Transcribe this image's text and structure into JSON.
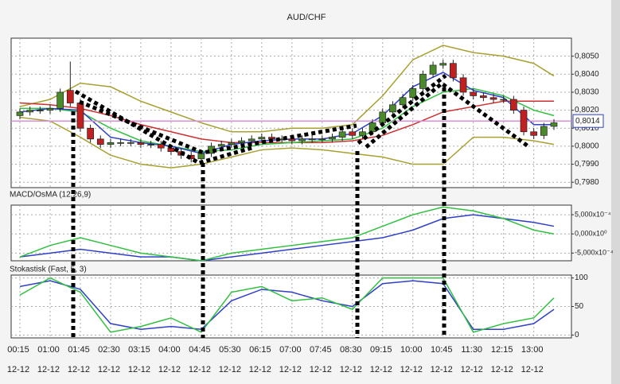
{
  "chart_data": [
    {
      "type": "candlestick",
      "title": "AUD/CHF",
      "categories": [
        "00:15",
        null,
        null,
        "01:00",
        null,
        null,
        "01:45",
        null,
        null,
        "02:30",
        null,
        null,
        "03:15",
        null,
        null,
        "04:00",
        null,
        null,
        "04:45",
        null,
        null,
        "05:30",
        null,
        null,
        "06:15",
        null,
        null,
        "07:00",
        null,
        null,
        "07:45",
        null,
        null,
        "08:30",
        null,
        null,
        "09:15",
        null,
        null,
        "10:00",
        null,
        null,
        "10:45",
        null,
        null,
        "11:30",
        null,
        null,
        "12:15",
        null,
        null,
        "13:00",
        null,
        null
      ],
      "category_dates": [
        "12-12",
        null,
        null,
        "12-12",
        null,
        null,
        "12-12",
        null,
        null,
        "12-12",
        null,
        null,
        "12-12",
        null,
        null,
        "12-12",
        null,
        null,
        "12-12",
        null,
        null,
        "12-12",
        null,
        null,
        "12-12",
        null,
        null,
        "12-12",
        null,
        null,
        "12-12",
        null,
        null,
        "12-12",
        null,
        null,
        "12-12",
        null,
        null,
        "12-12",
        null,
        null,
        "12-12",
        null,
        null,
        "12-12",
        null,
        null,
        "12-12",
        null,
        null,
        "12-12",
        null,
        null
      ],
      "open": [
        0.8017,
        0.8019,
        0.802,
        0.802,
        0.8021,
        0.8031,
        0.8024,
        0.801,
        0.8004,
        0.8001,
        0.8002,
        0.8002,
        0.8002,
        0.8001,
        0.8001,
        0.7999,
        0.7997,
        0.7995,
        0.7993,
        0.7996,
        0.8,
        0.8001,
        0.8002,
        0.8003,
        0.8004,
        0.8005,
        0.8004,
        0.8004,
        0.8003,
        0.8004,
        0.8004,
        0.8004,
        0.8005,
        0.8008,
        0.8006,
        0.8008,
        0.8013,
        0.8019,
        0.8023,
        0.8027,
        0.8032,
        0.804,
        0.8045,
        0.8046,
        0.8038,
        0.803,
        0.8028,
        0.8027,
        0.8026,
        0.8026,
        0.802,
        0.8008,
        0.8006,
        0.8011
      ],
      "high": [
        0.8021,
        0.8022,
        0.8022,
        0.8023,
        0.8032,
        0.8047,
        0.8026,
        0.8012,
        0.8006,
        0.8004,
        0.8004,
        0.8004,
        0.8004,
        0.8003,
        0.8003,
        0.8001,
        0.7999,
        0.7997,
        0.7998,
        0.8002,
        0.8003,
        0.8004,
        0.8005,
        0.8006,
        0.8007,
        0.8007,
        0.8006,
        0.8006,
        0.8006,
        0.8006,
        0.8006,
        0.8007,
        0.801,
        0.801,
        0.801,
        0.8015,
        0.8021,
        0.8025,
        0.8029,
        0.8034,
        0.8042,
        0.8047,
        0.8048,
        0.8048,
        0.804,
        0.8032,
        0.803,
        0.8029,
        0.8028,
        0.8028,
        0.8022,
        0.801,
        0.8013,
        0.8015
      ],
      "low": [
        0.8015,
        0.8017,
        0.8018,
        0.8018,
        0.8019,
        0.8022,
        0.8008,
        0.8002,
        0.7999,
        0.7999,
        0.8,
        0.8,
        0.7999,
        0.7999,
        0.7997,
        0.7995,
        0.7993,
        0.7991,
        0.7991,
        0.7994,
        0.7998,
        0.7999,
        0.8,
        0.8001,
        0.8002,
        0.8002,
        0.8002,
        0.8001,
        0.8001,
        0.8002,
        0.8002,
        0.8002,
        0.8003,
        0.8004,
        0.8004,
        0.8006,
        0.8011,
        0.8017,
        0.8021,
        0.8025,
        0.803,
        0.8038,
        0.8043,
        0.8036,
        0.8028,
        0.8026,
        0.8025,
        0.8024,
        0.8024,
        0.8018,
        0.8006,
        0.8004,
        0.8004,
        0.8009
      ],
      "close": [
        0.8019,
        0.802,
        0.802,
        0.8021,
        0.803,
        0.8024,
        0.801,
        0.8004,
        0.8001,
        0.8002,
        0.8002,
        0.8002,
        0.8001,
        0.8001,
        0.7999,
        0.7997,
        0.7995,
        0.7993,
        0.7996,
        0.8,
        0.8001,
        0.8002,
        0.8003,
        0.8004,
        0.8005,
        0.8004,
        0.8004,
        0.8003,
        0.8004,
        0.8004,
        0.8004,
        0.8005,
        0.8008,
        0.8006,
        0.8008,
        0.8013,
        0.8019,
        0.8023,
        0.8027,
        0.8032,
        0.804,
        0.8045,
        0.8046,
        0.8038,
        0.803,
        0.8028,
        0.8027,
        0.8026,
        0.8026,
        0.802,
        0.8008,
        0.8006,
        0.8011,
        0.8013
      ],
      "up_color": "#4a8a2a",
      "down_color": "#c02020",
      "series": [
        {
          "color": "#a8a030",
          "x": [
            0,
            3,
            6,
            9,
            12,
            15,
            18,
            21,
            24,
            27,
            30,
            33,
            36,
            39,
            42,
            45,
            48,
            51,
            53
          ],
          "values": [
            0.8022,
            0.8026,
            0.8035,
            0.8033,
            0.8025,
            0.8019,
            0.8013,
            0.8008,
            0.8008,
            0.801,
            0.801,
            0.8012,
            0.8028,
            0.8048,
            0.8056,
            0.8052,
            0.805,
            0.8046,
            0.8039
          ]
        },
        {
          "color": "#a8a030",
          "x": [
            0,
            3,
            6,
            9,
            12,
            15,
            18,
            21,
            24,
            27,
            30,
            33,
            36,
            39,
            42,
            45,
            48,
            51,
            53
          ],
          "values": [
            0.8016,
            0.8014,
            0.8005,
            0.7995,
            0.799,
            0.7988,
            0.799,
            0.7994,
            0.7998,
            0.7999,
            0.7998,
            0.7996,
            0.7994,
            0.799,
            0.799,
            0.8005,
            0.8005,
            0.8003,
            0.8001
          ]
        },
        {
          "color": "#cc3030",
          "x": [
            0,
            3,
            6,
            9,
            12,
            15,
            18,
            21,
            24,
            27,
            30,
            33,
            36,
            39,
            42,
            45,
            48,
            51,
            53
          ],
          "values": [
            0.8024,
            0.8023,
            0.8021,
            0.8017,
            0.8012,
            0.8008,
            0.8004,
            0.8002,
            0.8002,
            0.8002,
            0.8002,
            0.8003,
            0.8006,
            0.8012,
            0.8019,
            0.8022,
            0.8025,
            0.8025,
            0.8025
          ]
        },
        {
          "color": "#30c040",
          "x": [
            0,
            3,
            6,
            9,
            12,
            15,
            18,
            21,
            24,
            27,
            30,
            33,
            36,
            39,
            42,
            45,
            48,
            51,
            53
          ],
          "values": [
            0.8021,
            0.8021,
            0.8019,
            0.801,
            0.8003,
            0.8,
            0.7997,
            0.7998,
            0.8001,
            0.8002,
            0.8003,
            0.8004,
            0.801,
            0.8022,
            0.803,
            0.8032,
            0.8028,
            0.802,
            0.8017
          ]
        },
        {
          "color": "#3040c8",
          "x": [
            0,
            3,
            6,
            9,
            12,
            15,
            18,
            21,
            24,
            27,
            30,
            33,
            36,
            39,
            42,
            45,
            48,
            51,
            53
          ],
          "values": [
            0.8019,
            0.8021,
            0.802,
            0.8005,
            0.8002,
            0.8,
            0.7996,
            0.8001,
            0.8003,
            0.8004,
            0.8004,
            0.8007,
            0.8017,
            0.8033,
            0.8041,
            0.8031,
            0.8027,
            0.8012,
            0.8012
          ]
        }
      ],
      "last_price": {
        "value": 0.8014,
        "label": "0,8014"
      },
      "last_price_color": "#d890d8",
      "ylim": [
        0.7977,
        0.806
      ],
      "yticks": [
        {
          "value": 0.798,
          "label": "0,7980"
        },
        {
          "value": 0.799,
          "label": "0,7990"
        },
        {
          "value": 0.8,
          "label": "0,8000"
        },
        {
          "value": 0.801,
          "label": "0,8010"
        },
        {
          "value": 0.802,
          "label": "0,8020"
        },
        {
          "value": 0.803,
          "label": "0,8030"
        },
        {
          "value": 0.804,
          "label": "0,8040"
        },
        {
          "value": 0.805,
          "label": "0,8050"
        }
      ],
      "grid": true
    },
    {
      "type": "line",
      "title": "MACD/OsMA (12,26,9)",
      "series": [
        {
          "color": "#3040c8",
          "x": [
            0,
            3,
            6,
            9,
            12,
            15,
            18,
            21,
            24,
            27,
            30,
            33,
            36,
            39,
            42,
            45,
            48,
            51,
            53
          ],
          "values": [
            -0.0006,
            -0.0005,
            -0.0004,
            -0.0005,
            -0.0006,
            -0.0006,
            -0.0007,
            -0.0006,
            -0.0005,
            -0.0004,
            -0.0003,
            -0.0002,
            -0.0001,
            0.0001,
            0.0004,
            0.0005,
            0.0004,
            0.0003,
            0.0002
          ]
        },
        {
          "color": "#30c040",
          "x": [
            0,
            3,
            6,
            9,
            12,
            15,
            18,
            21,
            24,
            27,
            30,
            33,
            36,
            39,
            42,
            45,
            48,
            51,
            53
          ],
          "values": [
            -0.0006,
            -0.0003,
            -0.0001,
            -0.0003,
            -0.0005,
            -0.0006,
            -0.0007,
            -0.0005,
            -0.0004,
            -0.0003,
            -0.0002,
            -0.0001,
            0.0002,
            0.0005,
            0.0007,
            0.0006,
            0.0004,
            0.0001,
            0
          ]
        }
      ],
      "ylim": [
        -0.0007,
        0.00075
      ],
      "yticks": [
        {
          "value": -0.0005,
          "label": "-5,000x10⁻⁴"
        },
        {
          "value": 0,
          "label": "0,000x10⁰"
        },
        {
          "value": 0.0005,
          "label": "5,000x10⁻⁴"
        }
      ],
      "grid": true
    },
    {
      "type": "line",
      "title": "Stokastisk (Fast, 5, 3)",
      "series": [
        {
          "color": "#3040c8",
          "x": [
            0,
            3,
            6,
            9,
            12,
            15,
            18,
            21,
            24,
            27,
            30,
            33,
            36,
            39,
            42,
            45,
            48,
            51,
            53
          ],
          "values": [
            85,
            95,
            80,
            20,
            10,
            15,
            10,
            60,
            80,
            75,
            60,
            50,
            90,
            95,
            90,
            10,
            10,
            20,
            45
          ]
        },
        {
          "color": "#30c040",
          "x": [
            0,
            3,
            6,
            9,
            12,
            15,
            18,
            21,
            24,
            27,
            30,
            33,
            36,
            39,
            42,
            45,
            48,
            51,
            53
          ],
          "values": [
            70,
            100,
            75,
            5,
            15,
            30,
            5,
            75,
            85,
            60,
            65,
            45,
            100,
            100,
            100,
            5,
            20,
            30,
            65
          ]
        }
      ],
      "ylim": [
        -5,
        105
      ],
      "yticks": [
        0,
        50,
        100
      ],
      "grid": true
    }
  ]
}
